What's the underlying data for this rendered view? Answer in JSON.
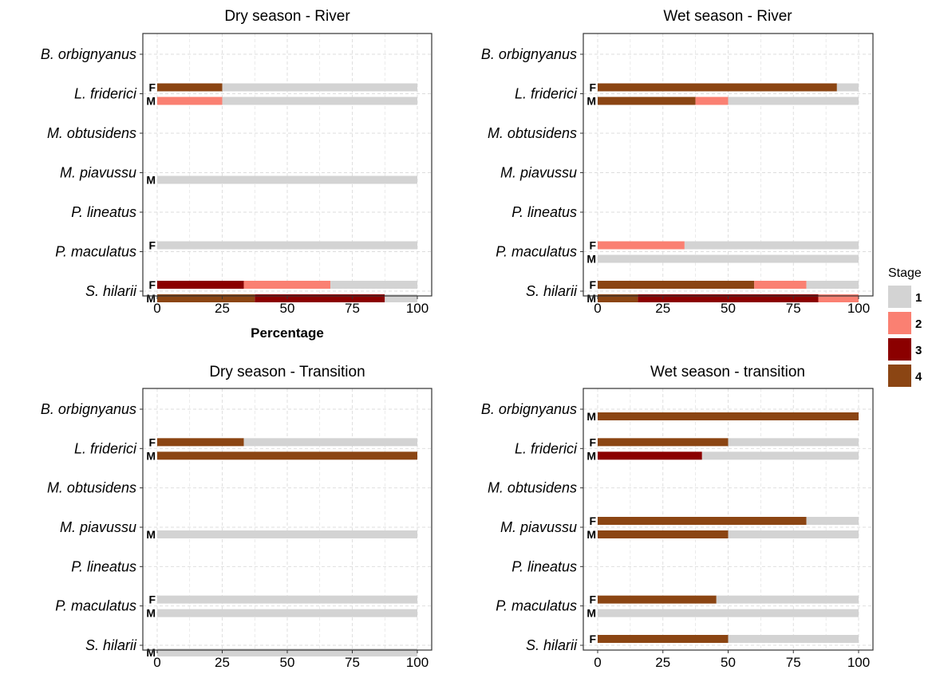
{
  "colors": {
    "1": "#d3d3d3",
    "2": "#fa8072",
    "3": "#8b0000",
    "4": "#8b4513"
  },
  "legend": {
    "title": "Stage",
    "items": [
      {
        "stage": "1",
        "label": "1",
        "color": "#d3d3d3"
      },
      {
        "stage": "2",
        "label": "2",
        "color": "#fa8072"
      },
      {
        "stage": "3",
        "label": "3",
        "color": "#8b0000"
      },
      {
        "stage": "4",
        "label": "4",
        "color": "#8b4513"
      }
    ]
  },
  "chart_data": [
    {
      "type": "bar",
      "title": "Dry season - River",
      "xlabel": "Percentage",
      "xlim": [
        0,
        100
      ],
      "xticks": [
        "0",
        "25",
        "50",
        "75",
        "100"
      ],
      "species": [
        "B. orbignyanus",
        "L. friderici",
        "M. obtusidens",
        "M. piavussu",
        "P. lineatus",
        "P. maculatus",
        "S. hilarii"
      ],
      "bars": [
        {
          "species": "L. friderici",
          "sex": "F",
          "segments": [
            {
              "stage": "4",
              "value": 25
            },
            {
              "stage": "1",
              "value": 75
            }
          ]
        },
        {
          "species": "L. friderici",
          "sex": "M",
          "segments": [
            {
              "stage": "2",
              "value": 25
            },
            {
              "stage": "1",
              "value": 75
            }
          ]
        },
        {
          "species": "M. piavussu",
          "sex": "M",
          "segments": [
            {
              "stage": "1",
              "value": 100
            }
          ]
        },
        {
          "species": "P. maculatus",
          "sex": "F",
          "segments": [
            {
              "stage": "1",
              "value": 100
            }
          ]
        },
        {
          "species": "S. hilarii",
          "sex": "F",
          "segments": [
            {
              "stage": "3",
              "value": 33.3
            },
            {
              "stage": "2",
              "value": 33.3
            },
            {
              "stage": "1",
              "value": 33.4
            }
          ]
        },
        {
          "species": "S. hilarii",
          "sex": "M",
          "segments": [
            {
              "stage": "4",
              "value": 37.5
            },
            {
              "stage": "3",
              "value": 50
            },
            {
              "stage": "1",
              "value": 12.5
            }
          ]
        }
      ]
    },
    {
      "type": "bar",
      "title": "Wet season - River",
      "xlabel": "",
      "xlim": [
        0,
        100
      ],
      "xticks": [
        "0",
        "25",
        "50",
        "75",
        "100"
      ],
      "species": [
        "B. orbignyanus",
        "L. friderici",
        "M. obtusidens",
        "M. piavussu",
        "P. lineatus",
        "P. maculatus",
        "S. hilarii"
      ],
      "bars": [
        {
          "species": "L. friderici",
          "sex": "F",
          "segments": [
            {
              "stage": "4",
              "value": 91.7
            },
            {
              "stage": "1",
              "value": 8.3
            }
          ]
        },
        {
          "species": "L. friderici",
          "sex": "M",
          "segments": [
            {
              "stage": "4",
              "value": 37.5
            },
            {
              "stage": "2",
              "value": 12.5
            },
            {
              "stage": "1",
              "value": 50
            }
          ]
        },
        {
          "species": "P. maculatus",
          "sex": "F",
          "segments": [
            {
              "stage": "2",
              "value": 33.3
            },
            {
              "stage": "1",
              "value": 66.7
            }
          ]
        },
        {
          "species": "P. maculatus",
          "sex": "M",
          "segments": [
            {
              "stage": "1",
              "value": 100
            }
          ]
        },
        {
          "species": "S. hilarii",
          "sex": "F",
          "segments": [
            {
              "stage": "4",
              "value": 60
            },
            {
              "stage": "2",
              "value": 20
            },
            {
              "stage": "1",
              "value": 20
            }
          ]
        },
        {
          "species": "S. hilarii",
          "sex": "M",
          "segments": [
            {
              "stage": "4",
              "value": 15.4
            },
            {
              "stage": "3",
              "value": 69.2
            },
            {
              "stage": "2",
              "value": 15.4
            }
          ]
        }
      ]
    },
    {
      "type": "bar",
      "title": "Dry season - Transition",
      "xlabel": "",
      "xlim": [
        0,
        100
      ],
      "xticks": [
        "0",
        "25",
        "50",
        "75",
        "100"
      ],
      "species": [
        "B. orbignyanus",
        "L. friderici",
        "M. obtusidens",
        "M. piavussu",
        "P. lineatus",
        "P. maculatus",
        "S. hilarii"
      ],
      "bars": [
        {
          "species": "L. friderici",
          "sex": "F",
          "segments": [
            {
              "stage": "4",
              "value": 33.3
            },
            {
              "stage": "1",
              "value": 66.7
            }
          ]
        },
        {
          "species": "L. friderici",
          "sex": "M",
          "segments": [
            {
              "stage": "4",
              "value": 100
            }
          ]
        },
        {
          "species": "M. piavussu",
          "sex": "M",
          "segments": [
            {
              "stage": "1",
              "value": 100
            }
          ]
        },
        {
          "species": "P. maculatus",
          "sex": "F",
          "segments": [
            {
              "stage": "1",
              "value": 100
            }
          ]
        },
        {
          "species": "P. maculatus",
          "sex": "M",
          "segments": [
            {
              "stage": "1",
              "value": 100
            }
          ]
        },
        {
          "species": "S. hilarii",
          "sex": "M",
          "segments": [
            {
              "stage": "1",
              "value": 100
            }
          ]
        }
      ]
    },
    {
      "type": "bar",
      "title": "Wet season - transition",
      "xlabel": "",
      "xlim": [
        0,
        100
      ],
      "xticks": [
        "0",
        "25",
        "50",
        "75",
        "100"
      ],
      "species": [
        "B. orbignyanus",
        "L. friderici",
        "M. obtusidens",
        "M. piavussu",
        "P. lineatus",
        "P. maculatus",
        "S. hilarii"
      ],
      "bars": [
        {
          "species": "B. orbignyanus",
          "sex": "M",
          "segments": [
            {
              "stage": "4",
              "value": 100
            }
          ]
        },
        {
          "species": "L. friderici",
          "sex": "F",
          "segments": [
            {
              "stage": "4",
              "value": 50
            },
            {
              "stage": "1",
              "value": 50
            }
          ]
        },
        {
          "species": "L. friderici",
          "sex": "M",
          "segments": [
            {
              "stage": "3",
              "value": 40
            },
            {
              "stage": "1",
              "value": 60
            }
          ]
        },
        {
          "species": "M. piavussu",
          "sex": "F",
          "segments": [
            {
              "stage": "4",
              "value": 80
            },
            {
              "stage": "1",
              "value": 20
            }
          ]
        },
        {
          "species": "M. piavussu",
          "sex": "M",
          "segments": [
            {
              "stage": "4",
              "value": 50
            },
            {
              "stage": "1",
              "value": 50
            }
          ]
        },
        {
          "species": "P. maculatus",
          "sex": "F",
          "segments": [
            {
              "stage": "4",
              "value": 45.5
            },
            {
              "stage": "1",
              "value": 54.5
            }
          ]
        },
        {
          "species": "P. maculatus",
          "sex": "M",
          "segments": [
            {
              "stage": "1",
              "value": 100
            }
          ]
        },
        {
          "species": "S. hilarii",
          "sex": "F",
          "segments": [
            {
              "stage": "4",
              "value": 50
            },
            {
              "stage": "1",
              "value": 50
            }
          ]
        }
      ]
    }
  ]
}
